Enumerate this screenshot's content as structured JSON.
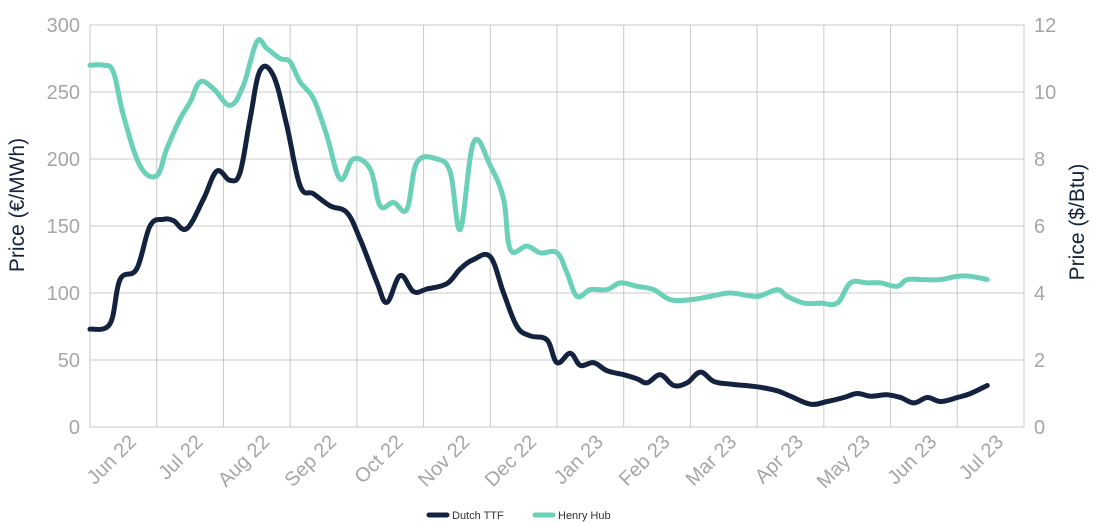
{
  "chart_data": {
    "type": "line",
    "title": "",
    "ylabel": "Price (€/MWh)",
    "ylabel_right": "Price ($/Btu)",
    "ylim": [
      0,
      300
    ],
    "ylim_right": [
      0,
      12
    ],
    "yticks": [
      "0",
      "50",
      "100",
      "150",
      "200",
      "250",
      "300"
    ],
    "yticks_right": [
      "0",
      "2",
      "4",
      "6",
      "8",
      "10",
      "12"
    ],
    "xticks": [
      "Jun 22",
      "Jul 22",
      "Aug 22",
      "Sep 22",
      "Oct 22",
      "Nov 22",
      "Dec 22",
      "Jan 23",
      "Feb 23",
      "Mar 23",
      "Apr 23",
      "May 23",
      "Jun 23",
      "Jul 23"
    ],
    "x_unit": "months since Jun 22 (0 = Jun 22)",
    "grid": true,
    "legend_position": "bottom-center",
    "series": [
      {
        "name": "Dutch TTF",
        "axis": "left",
        "color": "#13233f",
        "points": [
          [
            0.0,
            73
          ],
          [
            0.3,
            77
          ],
          [
            0.45,
            110
          ],
          [
            0.7,
            118
          ],
          [
            0.9,
            150
          ],
          [
            1.1,
            155
          ],
          [
            1.25,
            154
          ],
          [
            1.45,
            148
          ],
          [
            1.7,
            170
          ],
          [
            1.9,
            191
          ],
          [
            2.1,
            184
          ],
          [
            2.25,
            190
          ],
          [
            2.4,
            230
          ],
          [
            2.55,
            266
          ],
          [
            2.75,
            262
          ],
          [
            2.95,
            225
          ],
          [
            3.15,
            180
          ],
          [
            3.35,
            174
          ],
          [
            3.6,
            165
          ],
          [
            3.85,
            160
          ],
          [
            4.05,
            140
          ],
          [
            4.3,
            108
          ],
          [
            4.45,
            93
          ],
          [
            4.65,
            113
          ],
          [
            4.85,
            101
          ],
          [
            5.05,
            103
          ],
          [
            5.35,
            107
          ],
          [
            5.55,
            118
          ],
          [
            5.75,
            125
          ],
          [
            6.0,
            127
          ],
          [
            6.2,
            100
          ],
          [
            6.4,
            75
          ],
          [
            6.6,
            68
          ],
          [
            6.85,
            65
          ],
          [
            7.0,
            48
          ],
          [
            7.2,
            55
          ],
          [
            7.35,
            46
          ],
          [
            7.55,
            48
          ],
          [
            7.75,
            42
          ],
          [
            8.0,
            39
          ],
          [
            8.2,
            36
          ],
          [
            8.35,
            33
          ],
          [
            8.55,
            39
          ],
          [
            8.75,
            31
          ],
          [
            8.95,
            33
          ],
          [
            9.15,
            41
          ],
          [
            9.35,
            34
          ],
          [
            9.6,
            32
          ],
          [
            10.0,
            30
          ],
          [
            10.3,
            27
          ],
          [
            10.5,
            23
          ],
          [
            10.8,
            17
          ],
          [
            11.05,
            19
          ],
          [
            11.3,
            22
          ],
          [
            11.5,
            25
          ],
          [
            11.7,
            23
          ],
          [
            11.95,
            24
          ],
          [
            12.15,
            22
          ],
          [
            12.35,
            18
          ],
          [
            12.55,
            22
          ],
          [
            12.75,
            19
          ],
          [
            13.0,
            22
          ],
          [
            13.2,
            25
          ],
          [
            13.45,
            31
          ]
        ]
      },
      {
        "name": "Henry Hub",
        "axis": "right",
        "color": "#6bd0b8",
        "points": [
          [
            0.0,
            10.8
          ],
          [
            0.2,
            10.8
          ],
          [
            0.35,
            10.6
          ],
          [
            0.5,
            9.3
          ],
          [
            0.75,
            7.8
          ],
          [
            1.0,
            7.5
          ],
          [
            1.15,
            8.3
          ],
          [
            1.35,
            9.2
          ],
          [
            1.5,
            9.7
          ],
          [
            1.65,
            10.3
          ],
          [
            1.85,
            10.1
          ],
          [
            2.1,
            9.6
          ],
          [
            2.3,
            10.2
          ],
          [
            2.5,
            11.5
          ],
          [
            2.65,
            11.3
          ],
          [
            2.85,
            11.0
          ],
          [
            3.0,
            10.9
          ],
          [
            3.15,
            10.3
          ],
          [
            3.35,
            9.8
          ],
          [
            3.55,
            8.7
          ],
          [
            3.75,
            7.4
          ],
          [
            3.95,
            8.0
          ],
          [
            4.2,
            7.7
          ],
          [
            4.35,
            6.6
          ],
          [
            4.55,
            6.7
          ],
          [
            4.75,
            6.5
          ],
          [
            4.9,
            7.9
          ],
          [
            5.2,
            8.0
          ],
          [
            5.4,
            7.6
          ],
          [
            5.55,
            5.9
          ],
          [
            5.75,
            8.5
          ],
          [
            6.0,
            7.8
          ],
          [
            6.2,
            6.8
          ],
          [
            6.3,
            5.3
          ],
          [
            6.55,
            5.4
          ],
          [
            6.75,
            5.2
          ],
          [
            7.0,
            5.2
          ],
          [
            7.15,
            4.6
          ],
          [
            7.3,
            3.9
          ],
          [
            7.5,
            4.1
          ],
          [
            7.75,
            4.1
          ],
          [
            7.95,
            4.3
          ],
          [
            8.2,
            4.2
          ],
          [
            8.45,
            4.1
          ],
          [
            8.7,
            3.8
          ],
          [
            9.0,
            3.8
          ],
          [
            9.3,
            3.9
          ],
          [
            9.6,
            4.0
          ],
          [
            10.0,
            3.9
          ],
          [
            10.3,
            4.1
          ],
          [
            10.45,
            3.9
          ],
          [
            10.7,
            3.7
          ],
          [
            10.95,
            3.7
          ],
          [
            11.2,
            3.7
          ],
          [
            11.4,
            4.3
          ],
          [
            11.65,
            4.3
          ],
          [
            11.85,
            4.3
          ],
          [
            12.1,
            4.2
          ],
          [
            12.25,
            4.4
          ],
          [
            12.5,
            4.4
          ],
          [
            12.75,
            4.4
          ],
          [
            13.0,
            4.5
          ],
          [
            13.2,
            4.5
          ],
          [
            13.45,
            4.4
          ]
        ]
      }
    ]
  }
}
